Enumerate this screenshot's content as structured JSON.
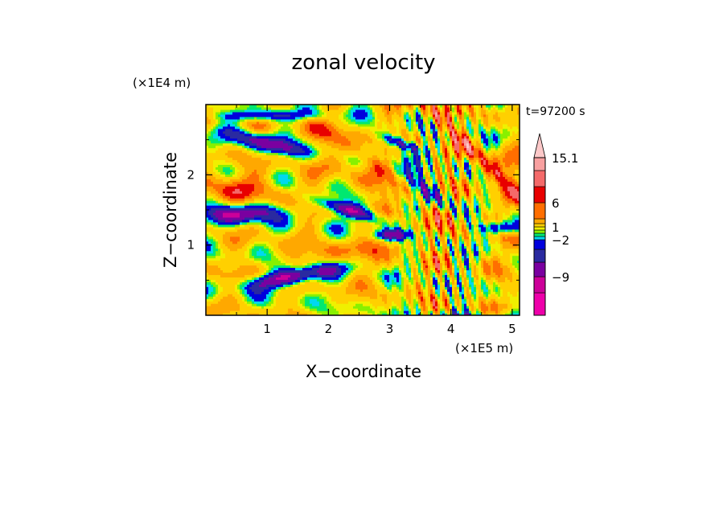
{
  "chart_data": {
    "type": "heatmap",
    "title": "zonal velocity",
    "xlabel": "X−coordinate",
    "ylabel": "Z−coordinate",
    "x_unit": "(×1E5 m)",
    "y_unit": "(×1E4 m)",
    "time_label": "t=97200 s",
    "xlim": [
      0,
      5.12
    ],
    "ylim": [
      0,
      3.0
    ],
    "x_ticks": [
      1,
      2,
      3,
      4,
      5
    ],
    "x_tick_labels": [
      "1",
      "2",
      "3",
      "4",
      "5"
    ],
    "y_ticks": [
      1,
      2
    ],
    "y_tick_labels": [
      "1",
      "2"
    ],
    "colorbar": {
      "labeled_values": [
        "15.1",
        "6",
        "1",
        "−2",
        "−9"
      ],
      "levels": [
        -15,
        -12,
        -9,
        -6,
        -4,
        -2,
        -1,
        0,
        1,
        2,
        4,
        6,
        8,
        10,
        12.5,
        15.1
      ],
      "colors": [
        "#ee00aa",
        "#cc0099",
        "#7a00a0",
        "#2a2aa0",
        "#0000dd",
        "#00d8f0",
        "#00e870",
        "#88f000",
        "#f0f000",
        "#ffd000",
        "#ffa800",
        "#ff6e00",
        "#e80000",
        "#f46a6a",
        "#f8a0a0",
        "#fcc8c8"
      ],
      "extend_max": true
    }
  }
}
